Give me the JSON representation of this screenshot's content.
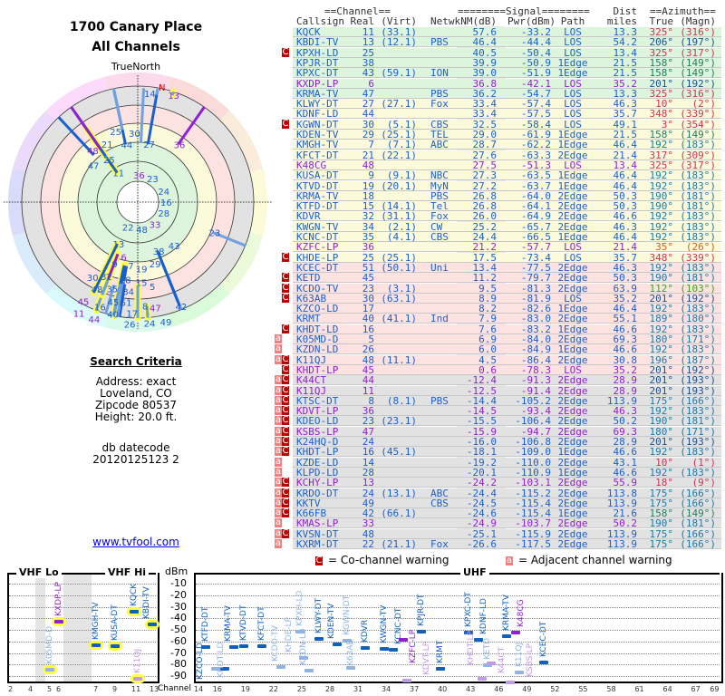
{
  "header": {
    "title": "1700 Canary Place",
    "subtitle": "All Channels"
  },
  "polar": {
    "north_label": "TrueNorth",
    "n_marker": "N"
  },
  "criteria": {
    "heading": "Search Criteria",
    "address": "Address: exact",
    "city": "Loveland, CO",
    "zipcode": "Zipcode 80537",
    "height": "Height: 20.0 ft.",
    "datecode_label": "db datecode",
    "datecode": "20120125123 2"
  },
  "link": "www.tvfool.com",
  "table": {
    "group_headers": {
      "channel": "==Channel==",
      "signal": "========Signal========",
      "dist": "Dist",
      "azimuth": "==Azimuth=="
    },
    "columns": [
      "Callsign",
      "Real",
      "(Virt)",
      "Netwk",
      "NM(dB)",
      "Pwr(dBm)",
      "Path",
      "miles",
      "True",
      "(Magn)"
    ],
    "rows": [
      [
        "",
        "KQCK",
        "11",
        "(33.1)",
        "",
        "57.6",
        "-33.2",
        "LOS",
        "13.3",
        "325°",
        "(316°)",
        0
      ],
      [
        "",
        "KBDI-TV",
        "13",
        "(12.1)",
        "PBS",
        "46.4",
        "-44.4",
        "LOS",
        "54.2",
        "206°",
        "(197°)",
        0
      ],
      [
        "C",
        "KPXH-LD",
        "25",
        "",
        "",
        "40.5",
        "-50.4",
        "LOS",
        "13.4",
        "325°",
        "(317°)",
        0
      ],
      [
        "",
        "KPJR-DT",
        "38",
        "",
        "",
        "39.9",
        "-50.9",
        "1Edge",
        "21.5",
        "158°",
        "(149°)",
        0
      ],
      [
        "",
        "KPXC-DT",
        "43",
        "(59.1)",
        "ION",
        "39.0",
        "-51.9",
        "1Edge",
        "21.5",
        "158°",
        "(149°)",
        0
      ],
      [
        "",
        "KXDP-LP",
        "6",
        "",
        "",
        "36.8",
        "-42.1",
        "LOS",
        "35.2",
        "201°",
        "(192°)",
        1
      ],
      [
        "",
        "KRMA-TV",
        "47",
        "",
        "PBS",
        "36.2",
        "-54.7",
        "LOS",
        "13.3",
        "325°",
        "(316°)",
        0
      ],
      [
        "",
        "KLWY-DT",
        "27",
        "(27.1)",
        "Fox",
        "33.4",
        "-57.4",
        "LOS",
        "46.3",
        "10°",
        "(2°)",
        0
      ],
      [
        "",
        "KDNF-LD",
        "44",
        "",
        "",
        "33.4",
        "-57.5",
        "LOS",
        "35.7",
        "348°",
        "(339°)",
        0
      ],
      [
        "C",
        "KGWN-DT",
        "30",
        "(5.1)",
        "CBS",
        "32.5",
        "-58.4",
        "LOS",
        "49.1",
        "3°",
        "(354°)",
        0
      ],
      [
        "",
        "KDEN-TV",
        "29",
        "(25.1)",
        "TEL",
        "29.0",
        "-61.9",
        "1Edge",
        "21.5",
        "158°",
        "(149°)",
        0
      ],
      [
        "",
        "KMGH-TV",
        "7",
        "(7.1)",
        "ABC",
        "28.7",
        "-62.2",
        "1Edge",
        "46.4",
        "192°",
        "(183°)",
        0
      ],
      [
        "",
        "KFCT-DT",
        "21",
        "(22.1)",
        "",
        "27.6",
        "-63.3",
        "2Edge",
        "21.4",
        "317°",
        "(309°)",
        0
      ],
      [
        "",
        "K48CG",
        "48",
        "",
        "",
        "27.5",
        "-51.3",
        "LOS",
        "13.4",
        "325°",
        "(317°)",
        1
      ],
      [
        "",
        "KUSA-DT",
        "9",
        "(9.1)",
        "NBC",
        "27.3",
        "-63.5",
        "1Edge",
        "46.4",
        "192°",
        "(183°)",
        0
      ],
      [
        "",
        "KTVD-DT",
        "19",
        "(20.1)",
        "MyN",
        "27.2",
        "-63.7",
        "1Edge",
        "46.4",
        "192°",
        "(183°)",
        0
      ],
      [
        "",
        "KRMA-TV",
        "18",
        "",
        "PBS",
        "26.8",
        "-64.0",
        "2Edge",
        "50.3",
        "190°",
        "(181°)",
        0
      ],
      [
        "",
        "KTFD-DT",
        "15",
        "(14.1)",
        "Tel",
        "26.8",
        "-64.1",
        "2Edge",
        "50.3",
        "190°",
        "(181°)",
        0
      ],
      [
        "",
        "KDVR",
        "32",
        "(31.1)",
        "Fox",
        "26.0",
        "-64.9",
        "2Edge",
        "46.6",
        "192°",
        "(183°)",
        0
      ],
      [
        "",
        "KWGN-TV",
        "34",
        "(2.1)",
        "CW",
        "25.2",
        "-65.7",
        "2Edge",
        "46.3",
        "192°",
        "(183°)",
        0
      ],
      [
        "",
        "KCNC-DT",
        "35",
        "(4.1)",
        "CBS",
        "24.4",
        "-66.5",
        "1Edge",
        "46.4",
        "192°",
        "(183°)",
        0
      ],
      [
        "",
        "KZFC-LP",
        "36",
        "",
        "",
        "21.2",
        "-57.7",
        "LOS",
        "21.4",
        "35°",
        "(26°)",
        1
      ],
      [
        "C",
        "KHDE-LP",
        "25",
        "(25.1)",
        "",
        "17.5",
        "-73.4",
        "LOS",
        "35.7",
        "348°",
        "(339°)",
        0
      ],
      [
        "",
        "KCEC-DT",
        "51",
        "(50.1)",
        "Uni",
        "13.4",
        "-77.5",
        "2Edge",
        "46.3",
        "192°",
        "(183°)",
        0
      ],
      [
        "C",
        "KETD",
        "45",
        "",
        "",
        "11.2",
        "-79.7",
        "2Edge",
        "50.3",
        "190°",
        "(181°)",
        0
      ],
      [
        "C",
        "KCDO-TV",
        "23",
        "(3.1)",
        "",
        "9.5",
        "-81.3",
        "2Edge",
        "63.9",
        "112°",
        "(103°)",
        0
      ],
      [
        "C",
        "K63AB",
        "30",
        "(63.1)",
        "",
        "8.9",
        "-81.9",
        "LOS",
        "35.2",
        "201°",
        "(192°)",
        0
      ],
      [
        "",
        "KZCO-LD",
        "17",
        "",
        "",
        "8.2",
        "-82.6",
        "1Edge",
        "46.4",
        "192°",
        "(183°)",
        0
      ],
      [
        "",
        "KRMT",
        "40",
        "(41.1)",
        "Ind",
        "7.9",
        "-83.0",
        "2Edge",
        "55.1",
        "189°",
        "(180°)",
        0
      ],
      [
        "C",
        "KHDT-LD",
        "16",
        "",
        "",
        "7.6",
        "-83.2",
        "1Edge",
        "46.6",
        "192°",
        "(183°)",
        0
      ],
      [
        "a",
        "K05MD-D",
        "5",
        "",
        "",
        "6.9",
        "-84.0",
        "2Edge",
        "69.3",
        "180°",
        "(171°)",
        0
      ],
      [
        "a",
        "KZDN-LD",
        "26",
        "",
        "",
        "6.0",
        "-84.9",
        "1Edge",
        "46.6",
        "192°",
        "(183°)",
        0
      ],
      [
        "aC",
        "K11QJ",
        "48",
        "(11.1)",
        "",
        "4.5",
        "-86.4",
        "2Edge",
        "30.8",
        "196°",
        "(187°)",
        0
      ],
      [
        "C",
        "KHDT-LP",
        "45",
        "",
        "",
        "0.6",
        "-78.3",
        "LOS",
        "35.2",
        "201°",
        "(192°)",
        1
      ],
      [
        "aC",
        "K44CT",
        "44",
        "",
        "",
        "-12.4",
        "-91.3",
        "2Edge",
        "28.9",
        "201°",
        "(193°)",
        1
      ],
      [
        "aC",
        "K11QJ",
        "11",
        "",
        "",
        "-12.5",
        "-91.4",
        "2Edge",
        "28.9",
        "201°",
        "(193°)",
        1
      ],
      [
        "aC",
        "KTSC-DT",
        "8",
        "(8.1)",
        "PBS",
        "-14.4",
        "-105.2",
        "2Edge",
        "113.9",
        "175°",
        "(166°)",
        0
      ],
      [
        "aC",
        "KDVT-LP",
        "36",
        "",
        "",
        "-14.5",
        "-93.4",
        "2Edge",
        "46.3",
        "192°",
        "(183°)",
        1
      ],
      [
        "aC",
        "KDEO-LD",
        "23",
        "(23.1)",
        "",
        "-15.5",
        "-106.4",
        "2Edge",
        "50.2",
        "190°",
        "(181°)",
        0
      ],
      [
        "aC",
        "KSBS-LP",
        "47",
        "",
        "",
        "-15.9",
        "-94.7",
        "2Edge",
        "69.3",
        "180°",
        "(171°)",
        1
      ],
      [
        "aC",
        "K24HQ-D",
        "24",
        "",
        "",
        "-16.0",
        "-106.8",
        "2Edge",
        "28.9",
        "201°",
        "(193°)",
        0
      ],
      [
        "aC",
        "KHDT-LP",
        "16",
        "(45.1)",
        "",
        "-18.1",
        "-109.0",
        "1Edge",
        "46.6",
        "192°",
        "(183°)",
        0
      ],
      [
        "a",
        "KZDE-LD",
        "14",
        "",
        "",
        "-19.2",
        "-110.0",
        "2Edge",
        "43.1",
        "10°",
        "(1°)",
        0
      ],
      [
        "a",
        "KLPD-LD",
        "28",
        "",
        "",
        "-20.1",
        "-110.9",
        "1Edge",
        "46.6",
        "192°",
        "(183°)",
        0
      ],
      [
        "aC",
        "KCHY-LP",
        "13",
        "",
        "",
        "-24.2",
        "-103.1",
        "2Edge",
        "55.9",
        "18°",
        "(9°)",
        1
      ],
      [
        "aC",
        "KRDO-DT",
        "24",
        "(13.1)",
        "ABC",
        "-24.4",
        "-115.2",
        "2Edge",
        "113.8",
        "175°",
        "(166°)",
        0
      ],
      [
        "aC",
        "KKTV",
        "49",
        "",
        "CBS",
        "-24.5",
        "-115.4",
        "2Edge",
        "113.9",
        "175°",
        "(166°)",
        0
      ],
      [
        "aC",
        "K66FB",
        "42",
        "(66.1)",
        "",
        "-24.6",
        "-115.4",
        "1Edge",
        "21.6",
        "158°",
        "(149°)",
        0
      ],
      [
        "a",
        "KMAS-LP",
        "33",
        "",
        "",
        "-24.9",
        "-103.7",
        "2Edge",
        "50.2",
        "190°",
        "(181°)",
        1
      ],
      [
        "aC",
        "KVSN-DT",
        "48",
        "",
        "",
        "-25.1",
        "-115.9",
        "2Edge",
        "113.9",
        "175°",
        "(166°)",
        0
      ],
      [
        "a",
        "KXRM-DT",
        "22",
        "(21.1)",
        "Fox",
        "-26.6",
        "-117.5",
        "2Edge",
        "113.9",
        "175°",
        "(166°)",
        0
      ]
    ]
  },
  "legend": {
    "co_flag": "C",
    "co_label": "= Co-channel warning",
    "adj_flag": "a",
    "adj_label": "= Adjacent channel warning"
  },
  "spectrum": {
    "vhf_lo": "VHF Lo",
    "vhf_hi": "VHF Hi",
    "uhf": "UHF",
    "unit": "dBm",
    "channel_label": "Channel",
    "dbm_ticks": [
      "-10",
      "-20",
      "-30",
      "-40",
      "-50",
      "-60",
      "-70",
      "-80",
      "-90"
    ],
    "vhf_channels": [
      "2",
      "4",
      "5",
      "6",
      "7",
      "9",
      "11",
      "13"
    ],
    "uhf_channels": [
      "14",
      "16",
      "19",
      "22",
      "25",
      "28",
      "31",
      "34",
      "37",
      "40",
      "43",
      "46",
      "49",
      "52",
      "55",
      "58",
      "61",
      "64",
      "67",
      "69"
    ]
  },
  "colors": {
    "blue": "#1a5fd0",
    "purple": "#9020d0",
    "co": "#c00000",
    "adj": "#f08080",
    "halo": "#ffff40"
  }
}
